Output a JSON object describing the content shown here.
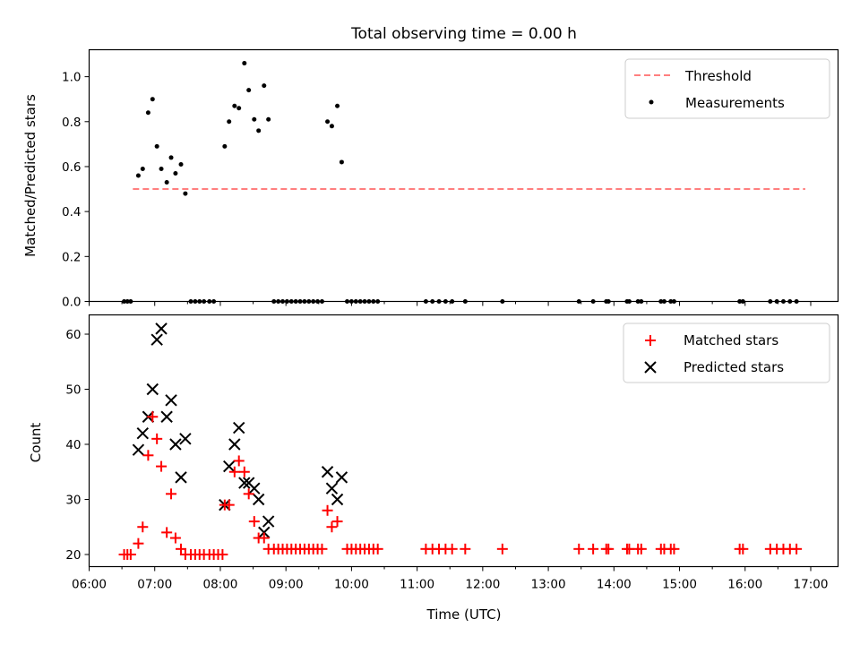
{
  "chart_data": [
    {
      "type": "scatter",
      "panel": "top",
      "title": "Total observing time = 0.00 h",
      "xlabel": "",
      "ylabel": "Matched/Predicted stars",
      "ylim": [
        0,
        1.12
      ],
      "yticks": [
        0.0,
        0.2,
        0.4,
        0.6,
        0.8,
        1.0
      ],
      "ytick_labels": [
        "0.0",
        "0.2",
        "0.4",
        "0.6",
        "0.8",
        "1.0"
      ],
      "grid": false,
      "legend_position": "top-right",
      "threshold": {
        "name": "Threshold",
        "value": 0.5,
        "x_start": "06:40",
        "x_end": "16:55",
        "color": "#ff7f7f"
      },
      "series": [
        {
          "name": "Measurements",
          "color": "#000000",
          "points": [
            [
              "06:32",
              0
            ],
            [
              "06:35",
              0
            ],
            [
              "06:38",
              0
            ],
            [
              "06:45",
              0.56
            ],
            [
              "06:49",
              0.59
            ],
            [
              "06:54",
              0.84
            ],
            [
              "06:58",
              0.9
            ],
            [
              "07:02",
              0.69
            ],
            [
              "07:06",
              0.59
            ],
            [
              "07:11",
              0.53
            ],
            [
              "07:15",
              0.64
            ],
            [
              "07:19",
              0.57
            ],
            [
              "07:24",
              0.61
            ],
            [
              "07:28",
              0.48
            ],
            [
              "07:33",
              0
            ],
            [
              "07:37",
              0
            ],
            [
              "07:41",
              0
            ],
            [
              "07:45",
              0
            ],
            [
              "07:50",
              0
            ],
            [
              "07:54",
              0
            ],
            [
              "08:04",
              0.69
            ],
            [
              "08:08",
              0.8
            ],
            [
              "08:13",
              0.87
            ],
            [
              "08:17",
              0.86
            ],
            [
              "08:22",
              1.06
            ],
            [
              "08:26",
              0.94
            ],
            [
              "08:31",
              0.81
            ],
            [
              "08:35",
              0.76
            ],
            [
              "08:40",
              0.96
            ],
            [
              "08:44",
              0.81
            ],
            [
              "08:49",
              0
            ],
            [
              "08:53",
              0
            ],
            [
              "08:57",
              0
            ],
            [
              "09:01",
              0
            ],
            [
              "09:05",
              0
            ],
            [
              "09:09",
              0
            ],
            [
              "09:13",
              0
            ],
            [
              "09:17",
              0
            ],
            [
              "09:21",
              0
            ],
            [
              "09:25",
              0
            ],
            [
              "09:29",
              0
            ],
            [
              "09:33",
              0
            ],
            [
              "09:38",
              0.8
            ],
            [
              "09:42",
              0.78
            ],
            [
              "09:47",
              0.87
            ],
            [
              "09:51",
              0.62
            ],
            [
              "09:56",
              0
            ],
            [
              "10:00",
              0
            ],
            [
              "10:04",
              0
            ],
            [
              "10:08",
              0
            ],
            [
              "10:12",
              0
            ],
            [
              "10:16",
              0
            ],
            [
              "10:20",
              0
            ],
            [
              "10:24",
              0
            ],
            [
              "11:08",
              0
            ],
            [
              "11:14",
              0
            ],
            [
              "11:20",
              0
            ],
            [
              "11:26",
              0
            ],
            [
              "11:32",
              0
            ],
            [
              "11:44",
              0
            ],
            [
              "12:18",
              0
            ],
            [
              "13:28",
              0
            ],
            [
              "13:41",
              0
            ],
            [
              "13:53",
              0
            ],
            [
              "13:55",
              0
            ],
            [
              "14:12",
              0
            ],
            [
              "14:14",
              0
            ],
            [
              "14:22",
              0
            ],
            [
              "14:25",
              0
            ],
            [
              "14:43",
              0
            ],
            [
              "14:46",
              0
            ],
            [
              "14:52",
              0
            ],
            [
              "14:55",
              0
            ],
            [
              "15:55",
              0
            ],
            [
              "15:58",
              0
            ],
            [
              "16:23",
              0
            ],
            [
              "16:29",
              0
            ],
            [
              "16:35",
              0
            ],
            [
              "16:41",
              0
            ],
            [
              "16:47",
              0
            ]
          ]
        }
      ]
    },
    {
      "type": "scatter",
      "panel": "bottom",
      "title": "",
      "xlabel": "Time (UTC)",
      "ylabel": "Count",
      "ylim": [
        17.8,
        63.5
      ],
      "yticks": [
        20,
        30,
        40,
        50,
        60
      ],
      "ytick_labels": [
        "20",
        "30",
        "40",
        "50",
        "60"
      ],
      "xlim": [
        "06:00",
        "17:25"
      ],
      "xticks": [
        "06:00",
        "07:00",
        "08:00",
        "09:00",
        "10:00",
        "11:00",
        "12:00",
        "13:00",
        "14:00",
        "15:00",
        "16:00",
        "17:00"
      ],
      "grid": false,
      "legend_position": "top-right",
      "series": [
        {
          "name": "Matched stars",
          "marker": "plus",
          "color": "#ff0000",
          "points": [
            [
              "06:32",
              20
            ],
            [
              "06:35",
              20
            ],
            [
              "06:38",
              20
            ],
            [
              "06:45",
              22
            ],
            [
              "06:49",
              25
            ],
            [
              "06:54",
              38
            ],
            [
              "06:58",
              45
            ],
            [
              "07:02",
              41
            ],
            [
              "07:06",
              36
            ],
            [
              "07:11",
              24
            ],
            [
              "07:15",
              31
            ],
            [
              "07:19",
              23
            ],
            [
              "07:24",
              21
            ],
            [
              "07:28",
              20
            ],
            [
              "07:33",
              20
            ],
            [
              "07:37",
              20
            ],
            [
              "07:41",
              20
            ],
            [
              "07:45",
              20
            ],
            [
              "07:50",
              20
            ],
            [
              "07:54",
              20
            ],
            [
              "07:58",
              20
            ],
            [
              "08:02",
              20
            ],
            [
              "08:04",
              29
            ],
            [
              "08:08",
              29
            ],
            [
              "08:13",
              35
            ],
            [
              "08:17",
              37
            ],
            [
              "08:22",
              35
            ],
            [
              "08:26",
              31
            ],
            [
              "08:31",
              26
            ],
            [
              "08:35",
              23
            ],
            [
              "08:40",
              23
            ],
            [
              "08:44",
              21
            ],
            [
              "08:49",
              21
            ],
            [
              "08:53",
              21
            ],
            [
              "08:57",
              21
            ],
            [
              "09:01",
              21
            ],
            [
              "09:05",
              21
            ],
            [
              "09:09",
              21
            ],
            [
              "09:13",
              21
            ],
            [
              "09:17",
              21
            ],
            [
              "09:21",
              21
            ],
            [
              "09:25",
              21
            ],
            [
              "09:29",
              21
            ],
            [
              "09:33",
              21
            ],
            [
              "09:38",
              28
            ],
            [
              "09:42",
              25
            ],
            [
              "09:47",
              26
            ],
            [
              "09:56",
              21
            ],
            [
              "10:00",
              21
            ],
            [
              "10:04",
              21
            ],
            [
              "10:08",
              21
            ],
            [
              "10:12",
              21
            ],
            [
              "10:16",
              21
            ],
            [
              "10:20",
              21
            ],
            [
              "10:24",
              21
            ],
            [
              "11:08",
              21
            ],
            [
              "11:14",
              21
            ],
            [
              "11:20",
              21
            ],
            [
              "11:26",
              21
            ],
            [
              "11:32",
              21
            ],
            [
              "11:44",
              21
            ],
            [
              "12:18",
              21
            ],
            [
              "13:28",
              21
            ],
            [
              "13:41",
              21
            ],
            [
              "13:53",
              21
            ],
            [
              "13:55",
              21
            ],
            [
              "14:12",
              21
            ],
            [
              "14:14",
              21
            ],
            [
              "14:22",
              21
            ],
            [
              "14:25",
              21
            ],
            [
              "14:43",
              21
            ],
            [
              "14:46",
              21
            ],
            [
              "14:52",
              21
            ],
            [
              "14:55",
              21
            ],
            [
              "15:55",
              21
            ],
            [
              "15:58",
              21
            ],
            [
              "16:23",
              21
            ],
            [
              "16:29",
              21
            ],
            [
              "16:35",
              21
            ],
            [
              "16:41",
              21
            ],
            [
              "16:47",
              21
            ]
          ]
        },
        {
          "name": "Predicted stars",
          "marker": "x",
          "color": "#000000",
          "points": [
            [
              "06:45",
              39
            ],
            [
              "06:49",
              42
            ],
            [
              "06:54",
              45
            ],
            [
              "06:58",
              50
            ],
            [
              "07:02",
              59
            ],
            [
              "07:06",
              61
            ],
            [
              "07:11",
              45
            ],
            [
              "07:15",
              48
            ],
            [
              "07:19",
              40
            ],
            [
              "07:24",
              34
            ],
            [
              "07:28",
              41
            ],
            [
              "08:04",
              29
            ],
            [
              "08:08",
              36
            ],
            [
              "08:13",
              40
            ],
            [
              "08:17",
              43
            ],
            [
              "08:22",
              33
            ],
            [
              "08:26",
              33
            ],
            [
              "08:31",
              32
            ],
            [
              "08:35",
              30
            ],
            [
              "08:40",
              24
            ],
            [
              "08:44",
              26
            ],
            [
              "09:38",
              35
            ],
            [
              "09:42",
              32
            ],
            [
              "09:47",
              30
            ],
            [
              "09:51",
              34
            ]
          ]
        }
      ]
    }
  ]
}
